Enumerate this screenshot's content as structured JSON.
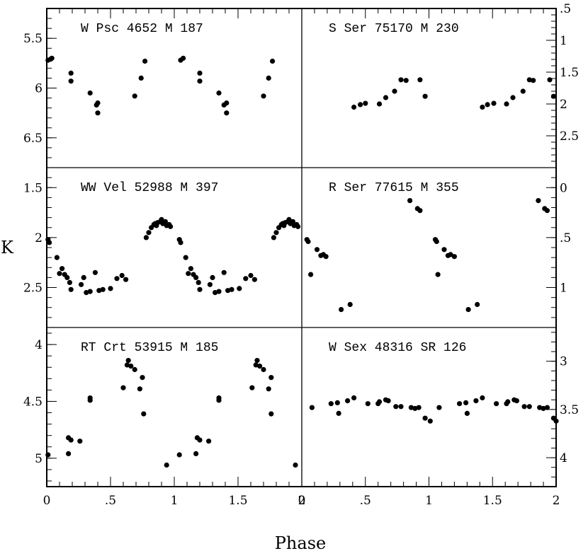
{
  "chart_data": {
    "type": "scatter",
    "title": "",
    "xlabel": "Phase",
    "ylabel": "K",
    "xlim": [
      0,
      2
    ],
    "x_ticks_left": [
      "0",
      ".5",
      "1",
      "1.5",
      "2"
    ],
    "x_ticks_right": [
      "0",
      ".5",
      "1",
      "1.5",
      "2"
    ],
    "panels": [
      {
        "id": "w-psc",
        "label": "W Psc      4652   M   187",
        "col": 0,
        "row": 0,
        "ylim": [
          5.2,
          6.8
        ],
        "axis_side": "left",
        "y_ticks": [
          5.5,
          6,
          6.5
        ],
        "y_tick_labels": [
          "5.5",
          "6",
          "6.5"
        ],
        "points": [
          [
            0.01,
            5.72
          ],
          [
            0.03,
            5.71
          ],
          [
            0.04,
            5.7
          ],
          [
            0.19,
            5.85
          ],
          [
            0.19,
            5.93
          ],
          [
            0.34,
            6.05
          ],
          [
            0.39,
            6.17
          ],
          [
            0.4,
            6.15
          ],
          [
            0.4,
            6.25
          ],
          [
            0.69,
            6.08
          ],
          [
            0.74,
            5.9
          ],
          [
            0.77,
            5.73
          ],
          [
            1.05,
            5.72
          ],
          [
            1.07,
            5.7
          ],
          [
            1.2,
            5.85
          ],
          [
            1.2,
            5.93
          ],
          [
            1.35,
            6.05
          ],
          [
            1.39,
            6.17
          ],
          [
            1.41,
            6.15
          ],
          [
            1.41,
            6.25
          ],
          [
            1.7,
            6.08
          ],
          [
            1.74,
            5.9
          ],
          [
            1.77,
            5.73
          ]
        ]
      },
      {
        "id": "s-ser",
        "label": "S Ser    75170   M   230",
        "col": 1,
        "row": 0,
        "ylim": [
          0.5,
          3.0
        ],
        "axis_side": "right",
        "y_ticks": [
          0.5,
          1,
          1.5,
          2,
          2.5
        ],
        "y_tick_labels": [
          ".5",
          "1",
          "1.5",
          "2",
          "2.5"
        ],
        "points": [
          [
            0.41,
            2.05
          ],
          [
            0.46,
            2.01
          ],
          [
            0.5,
            1.99
          ],
          [
            0.61,
            2.0
          ],
          [
            0.66,
            1.9
          ],
          [
            0.73,
            1.8
          ],
          [
            0.78,
            1.62
          ],
          [
            0.82,
            1.63
          ],
          [
            0.93,
            1.62
          ],
          [
            0.97,
            1.88
          ],
          [
            1.42,
            2.05
          ],
          [
            1.46,
            2.01
          ],
          [
            1.51,
            1.99
          ],
          [
            1.61,
            2.0
          ],
          [
            1.66,
            1.9
          ],
          [
            1.74,
            1.8
          ],
          [
            1.79,
            1.62
          ],
          [
            1.82,
            1.63
          ],
          [
            1.95,
            1.62
          ],
          [
            1.98,
            1.88
          ]
        ]
      },
      {
        "id": "ww-vel",
        "label": "WW Vel   52988   M   397",
        "col": 0,
        "row": 1,
        "ylim": [
          1.3,
          2.9
        ],
        "axis_side": "left",
        "y_ticks": [
          1.5,
          2,
          2.5
        ],
        "y_tick_labels": [
          "1.5",
          "2",
          "2.5"
        ],
        "points": [
          [
            0.01,
            2.02
          ],
          [
            0.02,
            2.05
          ],
          [
            0.08,
            2.2
          ],
          [
            0.1,
            2.36
          ],
          [
            0.12,
            2.31
          ],
          [
            0.14,
            2.37
          ],
          [
            0.16,
            2.4
          ],
          [
            0.18,
            2.45
          ],
          [
            0.19,
            2.52
          ],
          [
            0.27,
            2.47
          ],
          [
            0.29,
            2.4
          ],
          [
            0.31,
            2.55
          ],
          [
            0.34,
            2.54
          ],
          [
            0.38,
            2.35
          ],
          [
            0.41,
            2.53
          ],
          [
            0.44,
            2.52
          ],
          [
            0.5,
            2.51
          ],
          [
            0.55,
            2.41
          ],
          [
            0.59,
            2.38
          ],
          [
            0.62,
            2.42
          ],
          [
            0.78,
            2.0
          ],
          [
            0.8,
            1.95
          ],
          [
            0.82,
            1.9
          ],
          [
            0.84,
            1.87
          ],
          [
            0.85,
            1.86
          ],
          [
            0.86,
            1.88
          ],
          [
            0.87,
            1.85
          ],
          [
            0.89,
            1.84
          ],
          [
            0.9,
            1.82
          ],
          [
            0.91,
            1.86
          ],
          [
            0.93,
            1.84
          ],
          [
            0.94,
            1.88
          ],
          [
            0.96,
            1.87
          ],
          [
            0.97,
            1.89
          ],
          [
            1.04,
            2.02
          ],
          [
            1.05,
            2.05
          ],
          [
            1.09,
            2.2
          ],
          [
            1.11,
            2.36
          ],
          [
            1.13,
            2.31
          ],
          [
            1.15,
            2.37
          ],
          [
            1.17,
            2.4
          ],
          [
            1.19,
            2.45
          ],
          [
            1.2,
            2.52
          ],
          [
            1.28,
            2.47
          ],
          [
            1.3,
            2.4
          ],
          [
            1.32,
            2.55
          ],
          [
            1.35,
            2.54
          ],
          [
            1.39,
            2.35
          ],
          [
            1.42,
            2.53
          ],
          [
            1.45,
            2.52
          ],
          [
            1.51,
            2.51
          ],
          [
            1.56,
            2.41
          ],
          [
            1.6,
            2.38
          ],
          [
            1.63,
            2.42
          ],
          [
            1.78,
            2.0
          ],
          [
            1.8,
            1.95
          ],
          [
            1.82,
            1.9
          ],
          [
            1.84,
            1.87
          ],
          [
            1.85,
            1.86
          ],
          [
            1.86,
            1.88
          ],
          [
            1.87,
            1.85
          ],
          [
            1.89,
            1.84
          ],
          [
            1.9,
            1.82
          ],
          [
            1.91,
            1.86
          ],
          [
            1.93,
            1.84
          ],
          [
            1.94,
            1.88
          ],
          [
            1.96,
            1.87
          ],
          [
            1.97,
            1.89
          ]
        ]
      },
      {
        "id": "r-ser",
        "label": "R Ser    77615   M   355",
        "col": 1,
        "row": 1,
        "ylim": [
          -0.2,
          1.4
        ],
        "axis_side": "right",
        "y_ticks": [
          0,
          0.5,
          1
        ],
        "y_tick_labels": [
          "0",
          ".5",
          "1"
        ],
        "points": [
          [
            0.04,
            0.52
          ],
          [
            0.05,
            0.54
          ],
          [
            0.12,
            0.62
          ],
          [
            0.15,
            0.68
          ],
          [
            0.17,
            0.67
          ],
          [
            0.19,
            0.69
          ],
          [
            0.07,
            0.87
          ],
          [
            0.31,
            1.22
          ],
          [
            0.38,
            1.17
          ],
          [
            0.85,
            0.13
          ],
          [
            0.91,
            0.21
          ],
          [
            0.93,
            0.23
          ],
          [
            1.05,
            0.52
          ],
          [
            1.06,
            0.54
          ],
          [
            1.12,
            0.62
          ],
          [
            1.15,
            0.68
          ],
          [
            1.17,
            0.67
          ],
          [
            1.2,
            0.69
          ],
          [
            1.07,
            0.87
          ],
          [
            1.31,
            1.22
          ],
          [
            1.38,
            1.17
          ],
          [
            1.86,
            0.13
          ],
          [
            1.91,
            0.21
          ],
          [
            1.93,
            0.23
          ]
        ]
      },
      {
        "id": "rt-crt",
        "label": "RT Crt   53915   M   185",
        "col": 0,
        "row": 2,
        "ylim": [
          3.85,
          5.25
        ],
        "axis_side": "left",
        "y_ticks": [
          4,
          4.5,
          5
        ],
        "y_tick_labels": [
          "4",
          "4.5",
          "5"
        ],
        "points": [
          [
            0.01,
            4.97
          ],
          [
            0.17,
            4.96
          ],
          [
            0.17,
            4.82
          ],
          [
            0.19,
            4.84
          ],
          [
            0.26,
            4.85
          ],
          [
            0.34,
            4.47
          ],
          [
            0.34,
            4.49
          ],
          [
            0.6,
            4.38
          ],
          [
            0.63,
            4.18
          ],
          [
            0.64,
            4.14
          ],
          [
            0.66,
            4.19
          ],
          [
            0.69,
            4.22
          ],
          [
            0.73,
            4.39
          ],
          [
            0.75,
            4.29
          ],
          [
            0.76,
            4.61
          ],
          [
            0.94,
            5.06
          ],
          [
            1.04,
            4.97
          ],
          [
            1.17,
            4.96
          ],
          [
            1.18,
            4.82
          ],
          [
            1.2,
            4.84
          ],
          [
            1.27,
            4.85
          ],
          [
            1.35,
            4.47
          ],
          [
            1.35,
            4.49
          ],
          [
            1.61,
            4.38
          ],
          [
            1.64,
            4.18
          ],
          [
            1.65,
            4.14
          ],
          [
            1.67,
            4.19
          ],
          [
            1.7,
            4.22
          ],
          [
            1.74,
            4.39
          ],
          [
            1.76,
            4.29
          ],
          [
            1.76,
            4.61
          ],
          [
            1.95,
            5.06
          ]
        ]
      },
      {
        "id": "w-sex",
        "label": "W Sex     48316  SR   126",
        "col": 1,
        "row": 2,
        "ylim": [
          2.65,
          4.3
        ],
        "axis_side": "right",
        "y_ticks": [
          3,
          3.5,
          4
        ],
        "y_tick_labels": [
          "3",
          "3.5",
          "4"
        ],
        "points": [
          [
            0.08,
            3.48
          ],
          [
            0.23,
            3.44
          ],
          [
            0.28,
            3.43
          ],
          [
            0.29,
            3.54
          ],
          [
            0.36,
            3.41
          ],
          [
            0.41,
            3.38
          ],
          [
            0.52,
            3.44
          ],
          [
            0.6,
            3.44
          ],
          [
            0.61,
            3.42
          ],
          [
            0.66,
            3.4
          ],
          [
            0.68,
            3.41
          ],
          [
            0.74,
            3.47
          ],
          [
            0.78,
            3.47
          ],
          [
            0.86,
            3.48
          ],
          [
            0.89,
            3.49
          ],
          [
            0.92,
            3.48
          ],
          [
            0.97,
            3.59
          ],
          [
            1.01,
            3.62
          ],
          [
            1.08,
            3.48
          ],
          [
            1.24,
            3.44
          ],
          [
            1.29,
            3.43
          ],
          [
            1.3,
            3.54
          ],
          [
            1.37,
            3.41
          ],
          [
            1.42,
            3.38
          ],
          [
            1.53,
            3.44
          ],
          [
            1.61,
            3.44
          ],
          [
            1.62,
            3.42
          ],
          [
            1.67,
            3.4
          ],
          [
            1.69,
            3.41
          ],
          [
            1.75,
            3.47
          ],
          [
            1.79,
            3.47
          ],
          [
            1.87,
            3.48
          ],
          [
            1.9,
            3.49
          ],
          [
            1.93,
            3.48
          ],
          [
            1.98,
            3.59
          ],
          [
            2.0,
            3.62
          ]
        ]
      }
    ]
  }
}
